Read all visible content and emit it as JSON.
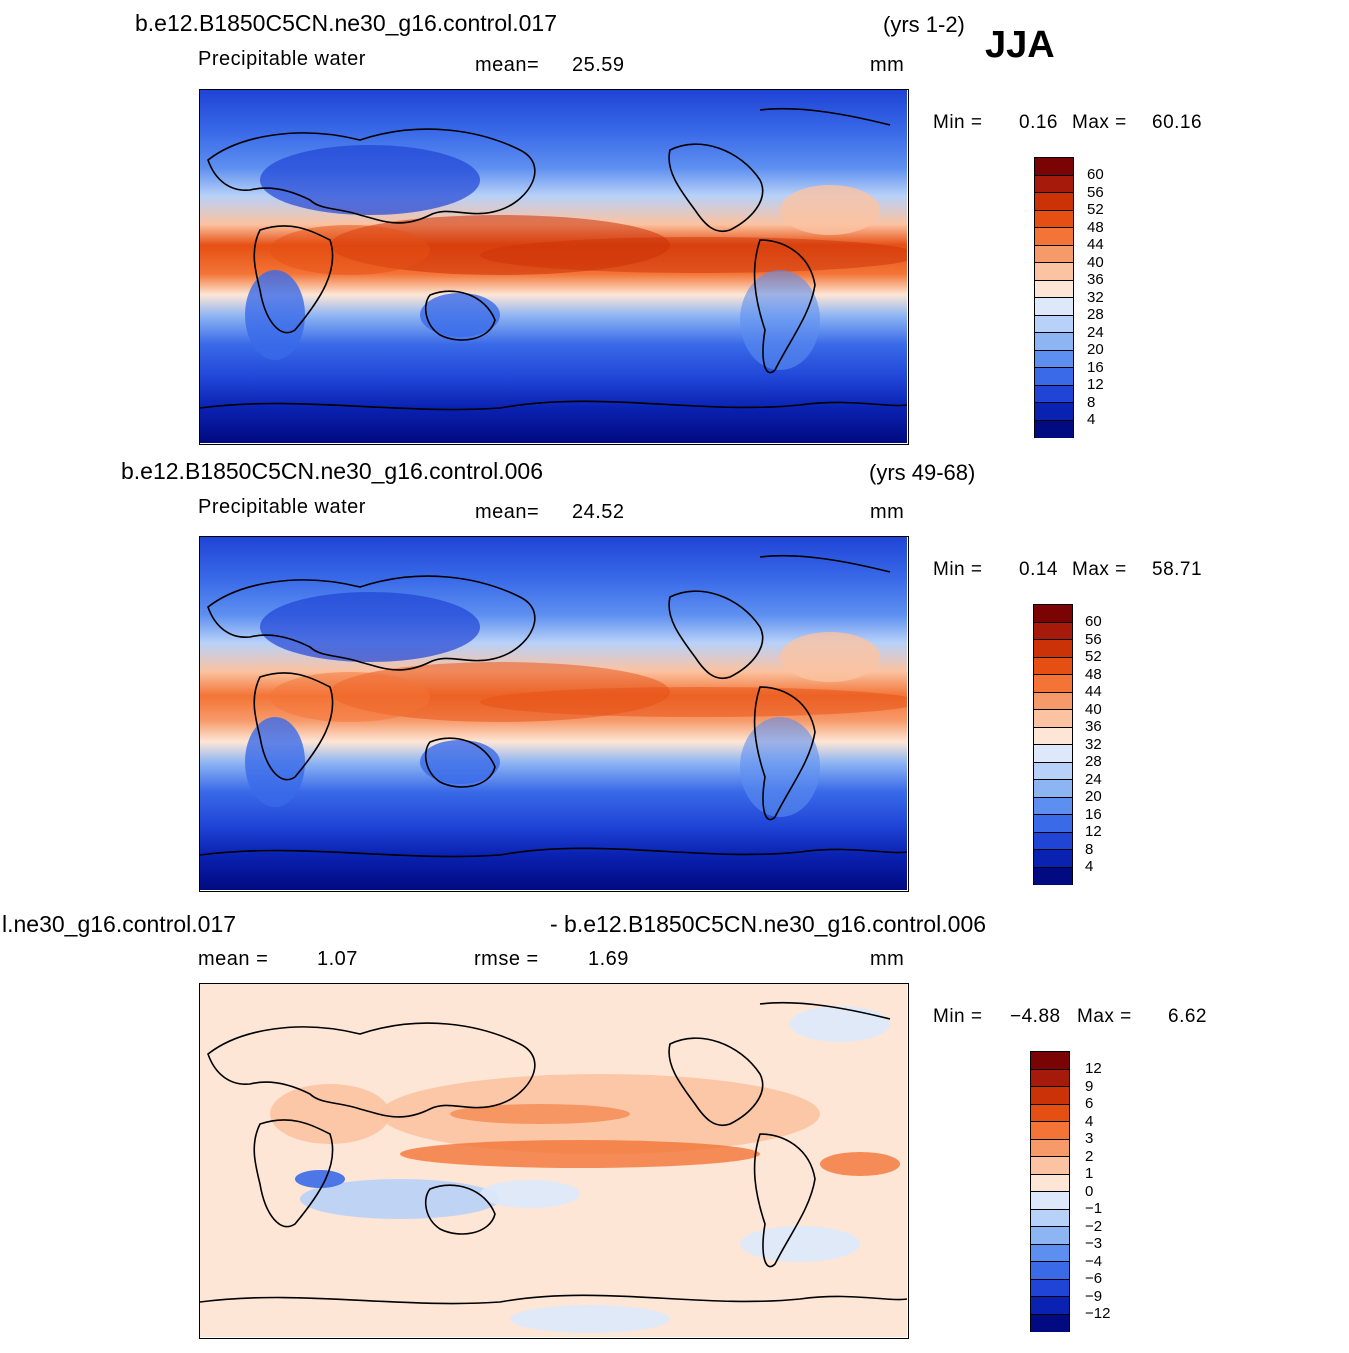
{
  "season": "JJA",
  "panels": [
    {
      "case": "b.e12.B1850C5CN.ne30_g16.control.017",
      "years": "(yrs 1-2)",
      "variable": "Precipitable  water",
      "stat_label": "mean=",
      "stat_value": "25.59",
      "stat2_label": "",
      "stat2_value": "",
      "units": "mm",
      "min_label": "Min =",
      "min_value": "0.16",
      "max_label": "Max =",
      "max_value": "60.16",
      "levels": [
        "60",
        "56",
        "52",
        "48",
        "44",
        "40",
        "36",
        "32",
        "28",
        "24",
        "20",
        "16",
        "12",
        "8",
        "4"
      ]
    },
    {
      "case": "b.e12.B1850C5CN.ne30_g16.control.006",
      "years": "(yrs 49-68)",
      "variable": "Precipitable  water",
      "stat_label": "mean=",
      "stat_value": "24.52",
      "stat2_label": "",
      "stat2_value": "",
      "units": "mm",
      "min_label": "Min =",
      "min_value": "0.14",
      "max_label": "Max =",
      "max_value": "58.71",
      "levels": [
        "60",
        "56",
        "52",
        "48",
        "44",
        "40",
        "36",
        "32",
        "28",
        "24",
        "20",
        "16",
        "12",
        "8",
        "4"
      ]
    },
    {
      "case": "l.ne30_g16.control.017",
      "years": "- b.e12.B1850C5CN.ne30_g16.control.006",
      "variable": "",
      "stat_label": "mean =",
      "stat_value": "1.07",
      "stat2_label": "rmse =",
      "stat2_value": "1.69",
      "units": "mm",
      "min_label": "Min =",
      "min_value": "−4.88",
      "max_label": "Max =",
      "max_value": "6.62",
      "levels": [
        "12",
        "9",
        "6",
        "4",
        "3",
        "2",
        "1",
        "0",
        "−1",
        "−2",
        "−3",
        "−4",
        "−6",
        "−9",
        "−12"
      ]
    }
  ],
  "colors": {
    "abs_scale": [
      "#7a0403",
      "#a51a0a",
      "#cc3208",
      "#e64f13",
      "#f37436",
      "#f79a6a",
      "#fbc3a2",
      "#fde6d6",
      "#dde9fb",
      "#b8d1f8",
      "#8db4f3",
      "#5d8ff0",
      "#3a6ae8",
      "#1f44d6",
      "#0a22b2",
      "#010a80"
    ],
    "diff_scale": [
      "#7a0403",
      "#a51a0a",
      "#cc3208",
      "#e64f13",
      "#f37436",
      "#f79a6a",
      "#fbc3a2",
      "#fde6d6",
      "#dde9fb",
      "#b8d1f8",
      "#8db4f3",
      "#5d8ff0",
      "#3a6ae8",
      "#1f44d6",
      "#0a22b2",
      "#010a80"
    ]
  }
}
